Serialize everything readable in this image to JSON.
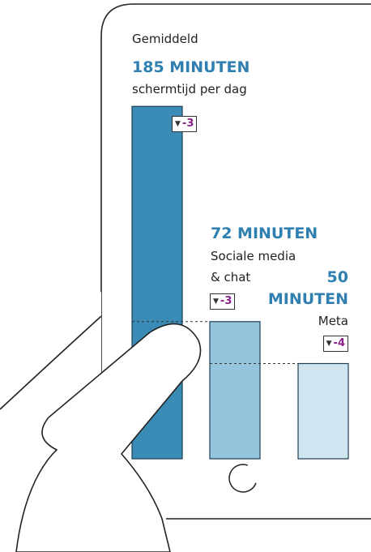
{
  "chart_data": {
    "type": "bar",
    "title": "Gemiddeld",
    "categories": [
      "schermtijd per dag",
      "Sociale media & chat",
      "Meta"
    ],
    "values": [
      185,
      72,
      50
    ],
    "value_labels": [
      "185 MINUTEN",
      "72 MINUTEN",
      "50 MINUTEN"
    ],
    "changes": [
      -3,
      -3,
      -4
    ],
    "colors": [
      "#3a8bb5",
      "#95c4dd",
      "#d0e5ef"
    ]
  }
}
